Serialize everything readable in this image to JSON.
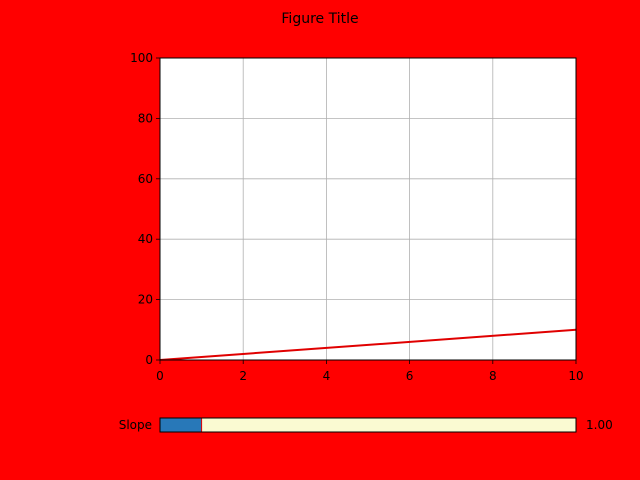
{
  "figure": {
    "title": "Figure Title",
    "background_color": "#ff0000"
  },
  "chart_data": {
    "type": "line",
    "title": "",
    "xlabel": "",
    "ylabel": "",
    "xlim": [
      0,
      10
    ],
    "ylim": [
      0,
      100
    ],
    "x_ticks": [
      0,
      2,
      4,
      6,
      8,
      10
    ],
    "y_ticks": [
      0,
      20,
      40,
      60,
      80,
      100
    ],
    "grid": true,
    "series": [
      {
        "color": "#e00000",
        "x": [
          0,
          10
        ],
        "y": [
          0,
          10
        ]
      }
    ]
  },
  "slider": {
    "label": "Slope",
    "value": 1.0,
    "value_text": "1.00",
    "min": 0,
    "max": 10,
    "fill_color": "#2878b8",
    "track_color": "#fafad2",
    "marker_color": "#e00000"
  }
}
